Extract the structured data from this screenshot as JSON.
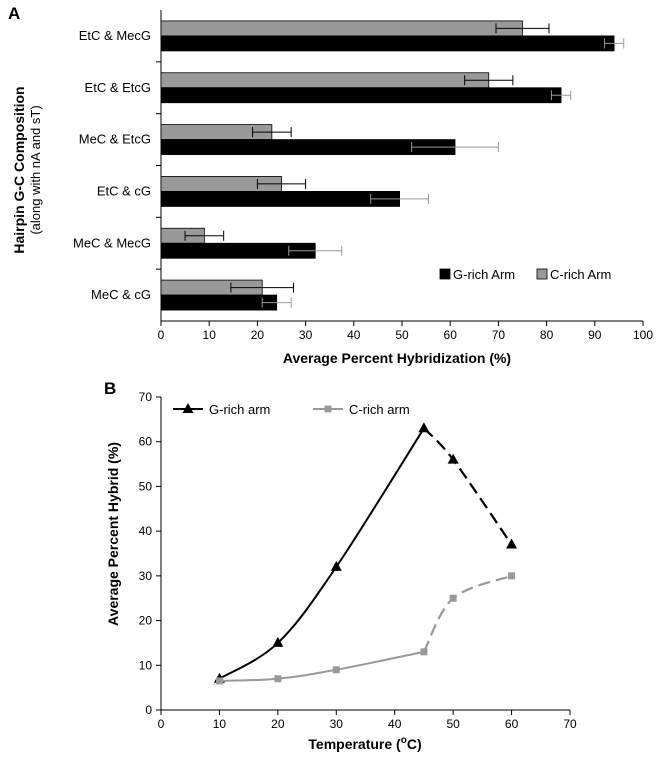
{
  "chart_data": [
    {
      "panel": "A",
      "type": "bar",
      "orientation": "horizontal",
      "categories": [
        "EtC & MecG",
        "EtC & EtcG",
        "MeC & EtcG",
        "EtC & cG",
        "MeC & MecG",
        "MeC & cG"
      ],
      "series": [
        {
          "name": "G-rich Arm",
          "color": "#000000",
          "values": [
            94,
            83,
            61,
            49.5,
            32,
            24
          ],
          "errors": [
            2,
            2,
            9,
            6,
            5.5,
            3
          ]
        },
        {
          "name": "C-rich Arm",
          "color": "#999999",
          "values": [
            75,
            68,
            23,
            25,
            9,
            21
          ],
          "errors": [
            5.5,
            5,
            4,
            5,
            4,
            6.5
          ]
        }
      ],
      "xlabel": "Average Percent Hybridization (%)",
      "ylabel": "Hairpin G-C Composition",
      "ylabel_sub": "(along with nA and sT)",
      "xlim": [
        0,
        100
      ],
      "xticks": [
        0,
        10,
        20,
        30,
        40,
        50,
        60,
        70,
        80,
        90,
        100
      ],
      "legend_position": "bottom-right",
      "grid": false
    },
    {
      "panel": "B",
      "type": "line",
      "series": [
        {
          "name": "G-rich arm",
          "color": "#000000",
          "marker": "triangle",
          "x": [
            10,
            20,
            30,
            45,
            50,
            60
          ],
          "y": [
            7,
            15,
            32,
            63,
            56,
            37
          ],
          "solid_until_x": 45
        },
        {
          "name": "C-rich arm",
          "color": "#999999",
          "marker": "square",
          "x": [
            10,
            20,
            30,
            45,
            50,
            60
          ],
          "y": [
            6.5,
            7,
            9,
            13,
            25,
            30
          ],
          "solid_until_x": 45
        }
      ],
      "xlabel": "Temperature (°C)",
      "ylabel": "Average Percent Hybrid (%)",
      "xlim": [
        0,
        70
      ],
      "ylim": [
        0,
        70
      ],
      "xticks": [
        0,
        10,
        20,
        30,
        40,
        50,
        60,
        70
      ],
      "yticks": [
        0,
        10,
        20,
        30,
        40,
        50,
        60,
        70
      ],
      "legend_position": "top-left",
      "grid": false
    }
  ]
}
